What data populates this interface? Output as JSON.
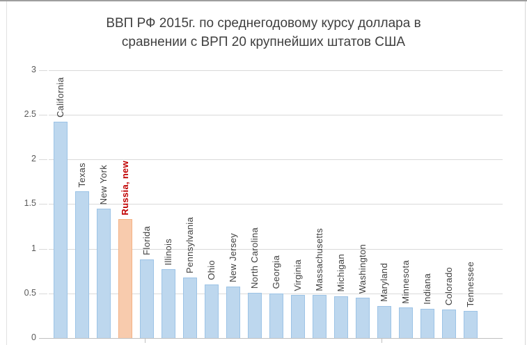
{
  "chart": {
    "title": "ВВП РФ 2015г. по среднегодовому курсу доллара в сравнении с ВРП 20 крупнейших штатов США",
    "title_lines": [
      "ВВП РФ 2015г. по среднегодовому курсу доллара в",
      "сравнении с ВРП 20 крупнейших штатов США"
    ]
  },
  "chart_data": {
    "type": "bar",
    "title": "ВВП РФ 2015г. по среднегодовому курсу доллара в сравнении с ВРП 20 крупнейших штатов США",
    "categories": [
      "California",
      "Texas",
      "New York",
      "Russia, new",
      "Florida",
      "Illinois",
      "Pennsylvania",
      "Ohio",
      "New Jersey",
      "North Carolina",
      "Georgia",
      "Virginia",
      "Massachusetts",
      "Michigan",
      "Washington",
      "Maryland",
      "Minnesota",
      "Indiana",
      "Colorado",
      "Tennessee"
    ],
    "values": [
      2.42,
      1.64,
      1.45,
      1.33,
      0.88,
      0.77,
      0.68,
      0.6,
      0.58,
      0.51,
      0.5,
      0.48,
      0.48,
      0.47,
      0.45,
      0.36,
      0.34,
      0.33,
      0.32,
      0.3
    ],
    "highlight_category": "Russia, new",
    "highlight_index": 3,
    "xlabel": "",
    "ylabel": "",
    "ylim": [
      0,
      3
    ],
    "y_ticks": [
      0,
      0.5,
      1,
      1.5,
      2,
      2.5,
      3
    ],
    "y_tick_labels": [
      "0",
      "0.5",
      "1",
      "1.5",
      "2",
      "2.5",
      "3"
    ],
    "grid": true,
    "legend": false,
    "category_label_position": "above-bar-rotated-90"
  },
  "colors": {
    "bar_fill": "#BDD7EE",
    "bar_border": "#9CC3E6",
    "highlight_fill": "#F8CBAD",
    "highlight_border": "#F4B183",
    "category_label": "#404040",
    "highlight_label": "#C00000",
    "gridline": "#D9D9D9",
    "axis_line": "#BFBFBF",
    "y_tick_label": "#595959",
    "title": "#3F3F3F",
    "background": "#FFFFFF"
  }
}
